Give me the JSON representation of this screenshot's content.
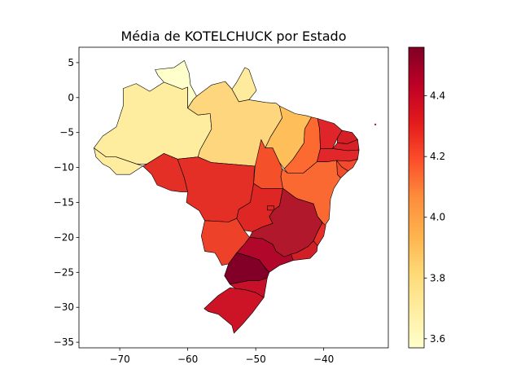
{
  "chart_data": {
    "type": "choropleth",
    "title": "Média de KOTELCHUCK por Estado",
    "xlabel": "",
    "ylabel": "",
    "xlim": [
      -76,
      -30.5
    ],
    "ylim": [
      -35.8,
      7.2
    ],
    "x_ticks": [
      -70,
      -60,
      -50,
      -40
    ],
    "x_tick_labels": [
      "−70",
      "−60",
      "−50",
      "−40"
    ],
    "y_ticks": [
      5,
      0,
      -5,
      -10,
      -15,
      -20,
      -25,
      -30,
      -35
    ],
    "y_tick_labels": [
      "5",
      "0",
      "−5",
      "−10",
      "−15",
      "−20",
      "−25",
      "−30",
      "−35"
    ],
    "colorbar": {
      "colormap": "YlOrRd",
      "range": [
        3.57,
        4.56
      ],
      "ticks": [
        3.6,
        3.8,
        4.0,
        4.2,
        4.4
      ],
      "tick_labels": [
        "3.6",
        "3.8",
        "4.0",
        "4.2",
        "4.4"
      ],
      "colors": [
        "#ffffcc",
        "#ffeda0",
        "#fed976",
        "#feb24c",
        "#fd8d3c",
        "#fc4e2a",
        "#e31a1c",
        "#bd0026",
        "#800026"
      ]
    },
    "regions": [
      {
        "name": "AC",
        "value": 3.65,
        "color": "#feec9f"
      },
      {
        "name": "AM",
        "value": 3.65,
        "color": "#feec9f"
      },
      {
        "name": "RR",
        "value": 3.57,
        "color": "#ffffcc"
      },
      {
        "name": "AP",
        "value": 3.66,
        "color": "#feeb9d"
      },
      {
        "name": "PA",
        "value": 3.78,
        "color": "#fed67d"
      },
      {
        "name": "TO",
        "value": 4.21,
        "color": "#f4502a"
      },
      {
        "name": "MA",
        "value": 3.87,
        "color": "#febf5a"
      },
      {
        "name": "PI",
        "value": 4.16,
        "color": "#fc6a32"
      },
      {
        "name": "CE",
        "value": 4.35,
        "color": "#e0252a"
      },
      {
        "name": "RN",
        "value": 4.4,
        "color": "#d41f26"
      },
      {
        "name": "PB",
        "value": 4.38,
        "color": "#d82028"
      },
      {
        "name": "PE",
        "value": 4.33,
        "color": "#e2272a"
      },
      {
        "name": "AL",
        "value": 4.22,
        "color": "#f24a2c"
      },
      {
        "name": "SE",
        "value": 4.2,
        "color": "#f34c2b"
      },
      {
        "name": "BA",
        "value": 4.14,
        "color": "#fb6932"
      },
      {
        "name": "RO",
        "value": 4.3,
        "color": "#e42f26"
      },
      {
        "name": "MT",
        "value": 4.3,
        "color": "#e42f26"
      },
      {
        "name": "GO",
        "value": 4.33,
        "color": "#de2725"
      },
      {
        "name": "DF",
        "value": 4.33,
        "color": "#de2725"
      },
      {
        "name": "MS",
        "value": 4.23,
        "color": "#ee4129"
      },
      {
        "name": "MG",
        "value": 4.47,
        "color": "#b2182b"
      },
      {
        "name": "ES",
        "value": 4.3,
        "color": "#e42f26"
      },
      {
        "name": "RJ",
        "value": 4.38,
        "color": "#d21e25"
      },
      {
        "name": "SP",
        "value": 4.47,
        "color": "#b1072a"
      },
      {
        "name": "PR",
        "value": 4.55,
        "color": "#820027"
      },
      {
        "name": "SC",
        "value": 4.41,
        "color": "#c7102a"
      },
      {
        "name": "RS",
        "value": 4.39,
        "color": "#cd1426"
      }
    ]
  }
}
